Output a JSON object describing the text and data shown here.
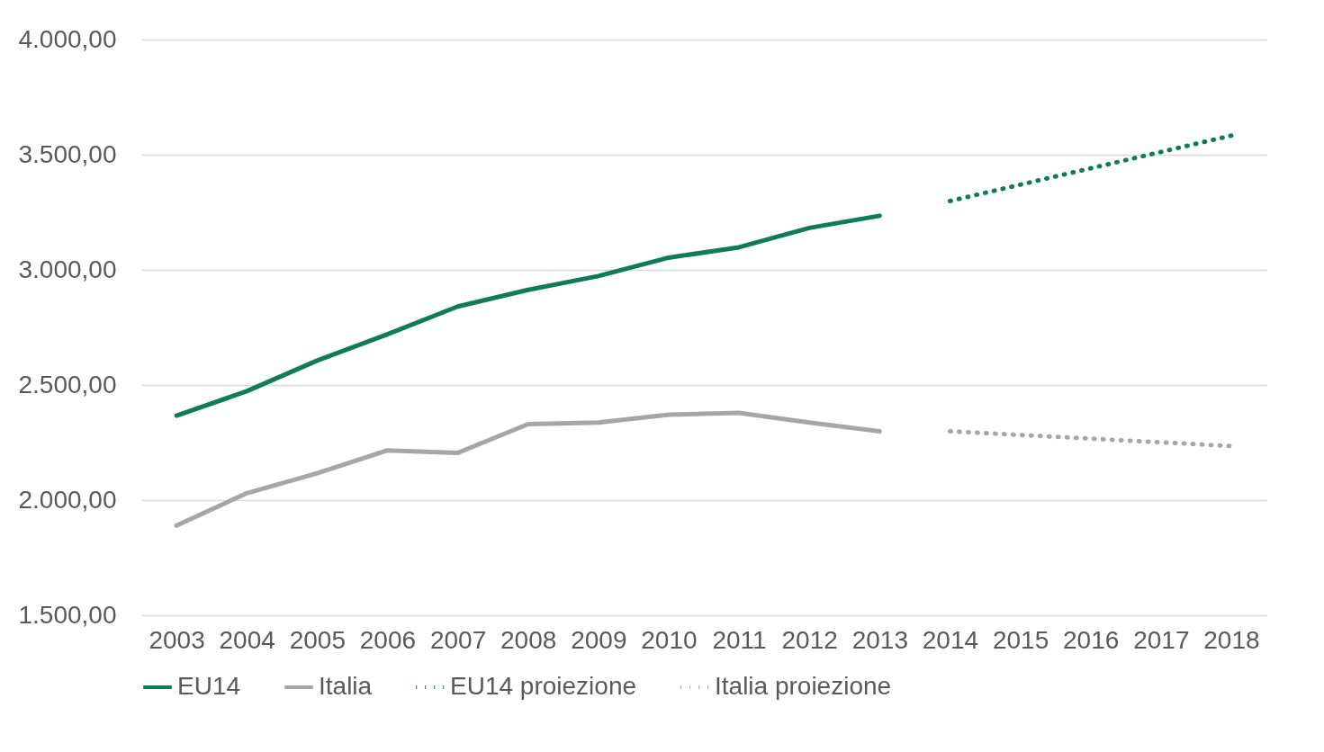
{
  "chart_data": {
    "type": "line",
    "categories": [
      "2003",
      "2004",
      "2005",
      "2006",
      "2007",
      "2008",
      "2009",
      "2010",
      "2011",
      "2012",
      "2013",
      "2014",
      "2015",
      "2016",
      "2017",
      "2018"
    ],
    "series": [
      {
        "name": "EU14",
        "color": "#0e7c5a",
        "line_style": "solid",
        "values": [
          2367,
          2473,
          2606,
          2720,
          2841,
          2913,
          2973,
          3053,
          3098,
          3182,
          3235,
          null,
          null,
          null,
          null,
          null
        ]
      },
      {
        "name": "Italia",
        "color": "#a6a6a6",
        "line_style": "solid",
        "values": [
          1890,
          2030,
          2117,
          2216,
          2205,
          2330,
          2337,
          2371,
          2379,
          2337,
          2299,
          null,
          null,
          null,
          null,
          null
        ]
      },
      {
        "name": "EU14 proiezione",
        "color": "#0e7c5a",
        "line_style": "dotted",
        "values": [
          null,
          null,
          null,
          null,
          null,
          null,
          null,
          null,
          null,
          null,
          null,
          3299,
          3370,
          3441,
          3512,
          3583
        ]
      },
      {
        "name": "Italia proiezione",
        "color": "#a6a6a6",
        "line_style": "dotted",
        "values": [
          null,
          null,
          null,
          null,
          null,
          null,
          null,
          null,
          null,
          null,
          null,
          2299,
          2283,
          2267,
          2251,
          2235
        ]
      }
    ],
    "ylim": [
      1500,
      4000
    ],
    "yticks": [
      {
        "value": 1500,
        "label": "1.500,00"
      },
      {
        "value": 2000,
        "label": "2.000,00"
      },
      {
        "value": 2500,
        "label": "2.500,00"
      },
      {
        "value": 3000,
        "label": "3.000,00"
      },
      {
        "value": 3500,
        "label": "3.500,00"
      },
      {
        "value": 4000,
        "label": "4.000,00"
      }
    ],
    "grid": "y",
    "legend": "bottom",
    "marker": "none"
  }
}
